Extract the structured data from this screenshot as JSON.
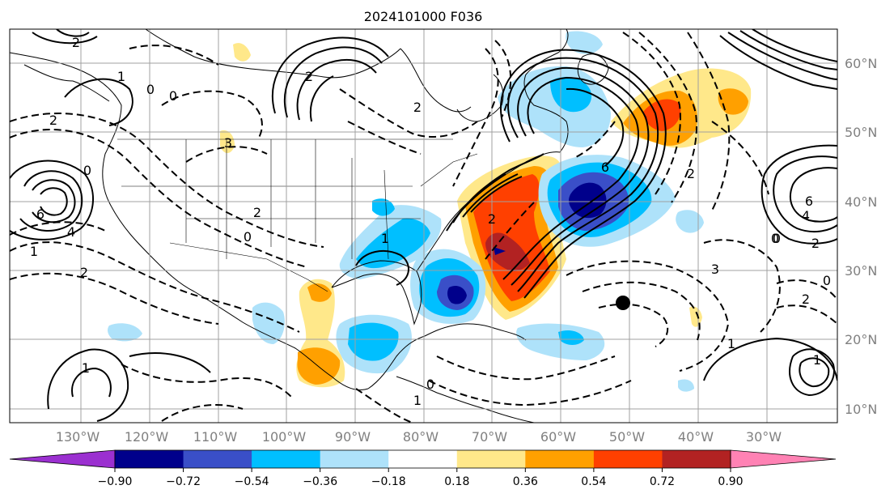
{
  "title": "2024101000 F036",
  "longitude_ticks": [
    "130°W",
    "120°W",
    "110°W",
    "100°W",
    "90°W",
    "80°W",
    "70°W",
    "60°W",
    "50°W",
    "40°W",
    "30°W"
  ],
  "latitude_ticks": [
    "60°N",
    "50°N",
    "40°N",
    "30°N",
    "20°N",
    "10°N"
  ],
  "colorbar": {
    "ticks": [
      "−0.90",
      "−0.72",
      "−0.54",
      "−0.36",
      "−0.18",
      "0.18",
      "0.36",
      "0.54",
      "0.72",
      "0.90"
    ],
    "under_color": "#9b30d0",
    "over_color": "#ff82b4",
    "bins": [
      "#00008b",
      "#3a4fc8",
      "#00bfff",
      "#aee2fa",
      "#ffffff",
      "#ffe88a",
      "#ffa000",
      "#ff4000",
      "#b22222"
    ]
  },
  "contour_labels": [
    {
      "text": "2"
    },
    {
      "text": "1"
    },
    {
      "text": "0"
    },
    {
      "text": "0"
    },
    {
      "text": "2"
    },
    {
      "text": "3"
    },
    {
      "text": "6"
    },
    {
      "text": "4"
    },
    {
      "text": "2"
    },
    {
      "text": "0"
    },
    {
      "text": "1"
    },
    {
      "text": "2"
    },
    {
      "text": "2"
    },
    {
      "text": "2"
    },
    {
      "text": "0"
    },
    {
      "text": "1"
    },
    {
      "text": "6"
    },
    {
      "text": "6"
    },
    {
      "text": "4"
    },
    {
      "text": "2"
    },
    {
      "text": "0"
    },
    {
      "text": "0"
    },
    {
      "text": "2"
    },
    {
      "text": "1"
    },
    {
      "text": "0"
    },
    {
      "text": "1"
    },
    {
      "text": "1"
    },
    {
      "text": "2"
    },
    {
      "text": "3"
    },
    {
      "text": "0"
    },
    {
      "text": "2"
    },
    {
      "text": "1"
    }
  ]
}
